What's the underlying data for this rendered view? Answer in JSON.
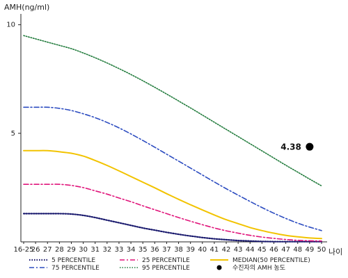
{
  "chart_data": {
    "type": "line",
    "ylabel": "AMH(ng/ml)",
    "xlabel": "나이",
    "ylim": [
      0,
      10.5
    ],
    "yticks": [
      5,
      10
    ],
    "x_categories": [
      "16-25",
      "26",
      "27",
      "28",
      "29",
      "30",
      "31",
      "32",
      "33",
      "34",
      "35",
      "36",
      "37",
      "38",
      "39",
      "40",
      "41",
      "42",
      "43",
      "44",
      "45",
      "46",
      "47",
      "48",
      "49",
      "50"
    ],
    "series": [
      {
        "name": "5 PERCENTILE",
        "color": "#1a1a6e",
        "dash": "1.5,2",
        "width": 2.2,
        "values": [
          1.3,
          1.3,
          1.3,
          1.3,
          1.28,
          1.22,
          1.12,
          1.0,
          0.88,
          0.76,
          0.64,
          0.54,
          0.44,
          0.35,
          0.27,
          0.2,
          0.14,
          0.1,
          0.06,
          0.04,
          0.02,
          0.01,
          0.01,
          0.01,
          0.01,
          0.01
        ]
      },
      {
        "name": "25 PERCENTILE",
        "color": "#e0147a",
        "dash": "7,3,2,3",
        "width": 1.6,
        "values": [
          2.65,
          2.65,
          2.65,
          2.65,
          2.6,
          2.5,
          2.35,
          2.2,
          2.02,
          1.85,
          1.66,
          1.48,
          1.3,
          1.12,
          0.95,
          0.79,
          0.64,
          0.51,
          0.4,
          0.3,
          0.22,
          0.16,
          0.11,
          0.07,
          0.05,
          0.04
        ]
      },
      {
        "name": "MEDIAN(50 PERCENTILE)",
        "color": "#f2c300",
        "dash": "",
        "width": 2.0,
        "values": [
          4.2,
          4.2,
          4.2,
          4.15,
          4.08,
          3.95,
          3.75,
          3.52,
          3.27,
          3.01,
          2.75,
          2.49,
          2.22,
          1.96,
          1.71,
          1.47,
          1.24,
          1.02,
          0.84,
          0.66,
          0.52,
          0.4,
          0.3,
          0.23,
          0.18,
          0.15
        ]
      },
      {
        "name": "75 PERCENTILE",
        "color": "#2b4bc0",
        "dash": "7,3,2,3",
        "width": 1.6,
        "values": [
          6.2,
          6.2,
          6.2,
          6.15,
          6.05,
          5.9,
          5.72,
          5.5,
          5.25,
          4.97,
          4.67,
          4.36,
          4.04,
          3.72,
          3.4,
          3.08,
          2.76,
          2.45,
          2.15,
          1.86,
          1.58,
          1.32,
          1.08,
          0.86,
          0.68,
          0.52
        ]
      },
      {
        "name": "95 PERCENTILE",
        "color": "#1f7a3a",
        "dash": "1.5,2",
        "width": 1.6,
        "values": [
          9.5,
          9.35,
          9.2,
          9.05,
          8.9,
          8.7,
          8.48,
          8.24,
          7.98,
          7.71,
          7.42,
          7.12,
          6.81,
          6.49,
          6.17,
          5.84,
          5.51,
          5.18,
          4.85,
          4.52,
          4.19,
          3.86,
          3.53,
          3.21,
          2.89,
          2.58
        ]
      }
    ],
    "marker": {
      "x": "49",
      "y": 4.38,
      "label": "4.38",
      "legend": "수진자의 AMH 농도",
      "color": "#000000"
    },
    "grid": false
  }
}
